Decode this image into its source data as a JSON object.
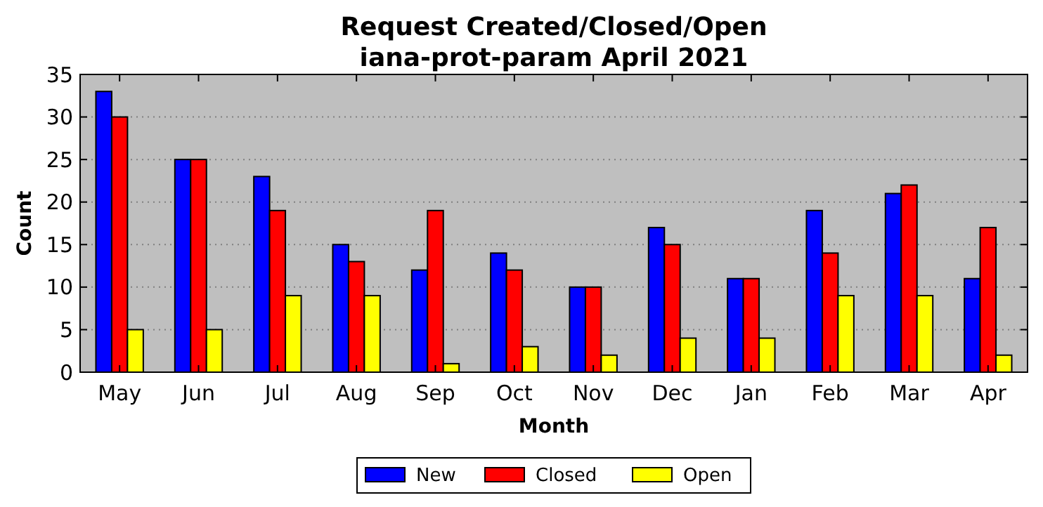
{
  "chart_data": {
    "type": "bar",
    "title": "Request Created/Closed/Open",
    "subtitle": "iana-prot-param April 2021",
    "xlabel": "Month",
    "ylabel": "Count",
    "categories": [
      "May",
      "Jun",
      "Jul",
      "Aug",
      "Sep",
      "Oct",
      "Nov",
      "Dec",
      "Jan",
      "Feb",
      "Mar",
      "Apr"
    ],
    "series": [
      {
        "name": "New",
        "color": "#0000ff",
        "values": [
          33,
          25,
          23,
          15,
          12,
          14,
          10,
          17,
          11,
          19,
          21,
          11
        ]
      },
      {
        "name": "Closed",
        "color": "#ff0000",
        "values": [
          30,
          25,
          19,
          13,
          19,
          12,
          10,
          15,
          11,
          14,
          22,
          17
        ]
      },
      {
        "name": "Open",
        "color": "#ffff00",
        "values": [
          5,
          5,
          9,
          9,
          1,
          3,
          2,
          4,
          4,
          9,
          9,
          2
        ]
      }
    ],
    "ylim": [
      0,
      35
    ],
    "yticks": [
      0,
      5,
      10,
      15,
      20,
      25,
      30,
      35
    ],
    "grid": "y",
    "legend": "bottom"
  }
}
